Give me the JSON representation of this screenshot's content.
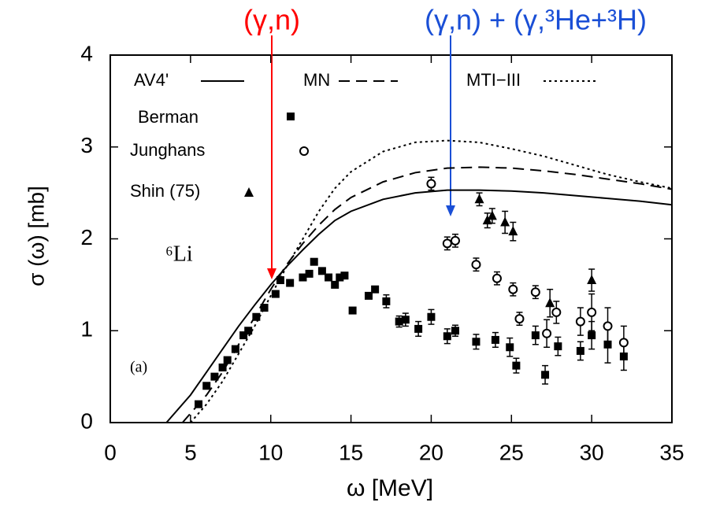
{
  "chart_data": {
    "type": "line",
    "annotations": [
      "(γ,n)",
      "(γ,n) + (γ,³He+³H)",
      "⁶Li",
      "(a)"
    ],
    "annotation_colors": [
      "#ff0000",
      "#1a4fd6",
      "#000000",
      "#000000"
    ],
    "xlabel": "ω  [MeV]",
    "ylabel": "σ (ω) [mb]",
    "xlim": [
      0,
      35
    ],
    "ylim": [
      0,
      4
    ],
    "xticks": [
      0,
      5,
      10,
      15,
      20,
      25,
      30,
      35
    ],
    "yticks": [
      0,
      1,
      2,
      3,
      4
    ],
    "series": [
      {
        "name": "AV4'",
        "kind": "line",
        "dash": "solid",
        "color": "#000000",
        "x": [
          3.5,
          5,
          6,
          7,
          8,
          9,
          10,
          11,
          12,
          13,
          14,
          15,
          17,
          19,
          21,
          23,
          25,
          27,
          29,
          31,
          33,
          35
        ],
        "values": [
          0,
          0.3,
          0.55,
          0.8,
          1.05,
          1.28,
          1.5,
          1.7,
          1.88,
          2.05,
          2.2,
          2.3,
          2.43,
          2.5,
          2.53,
          2.53,
          2.52,
          2.5,
          2.47,
          2.44,
          2.41,
          2.37
        ]
      },
      {
        "name": "MN",
        "kind": "line",
        "dash": "dashed",
        "color": "#000000",
        "x": [
          4.5,
          6,
          7,
          8,
          9,
          10,
          11,
          12,
          13,
          14,
          15,
          17,
          19,
          21,
          23,
          25,
          27,
          29,
          31,
          33,
          35
        ],
        "values": [
          0,
          0.3,
          0.55,
          0.85,
          1.15,
          1.45,
          1.72,
          1.95,
          2.15,
          2.32,
          2.45,
          2.62,
          2.72,
          2.77,
          2.78,
          2.77,
          2.74,
          2.7,
          2.65,
          2.6,
          2.54
        ]
      },
      {
        "name": "MTI−III",
        "kind": "line",
        "dash": "dotted",
        "color": "#000000",
        "x": [
          5,
          6,
          7,
          8,
          9,
          10,
          11,
          12,
          13,
          14,
          15,
          17,
          19,
          21,
          23,
          25,
          27,
          29,
          31,
          33,
          35
        ],
        "values": [
          0,
          0.2,
          0.45,
          0.75,
          1.05,
          1.38,
          1.7,
          2.0,
          2.3,
          2.55,
          2.73,
          2.95,
          3.05,
          3.07,
          3.05,
          2.98,
          2.9,
          2.8,
          2.7,
          2.62,
          2.55
        ]
      },
      {
        "name": "Berman",
        "kind": "scatter",
        "marker": "square",
        "color": "#000000",
        "x": [
          5.5,
          6,
          6.5,
          7,
          7.3,
          7.8,
          8.3,
          8.6,
          9.1,
          9.6,
          10.3,
          10.6,
          11.2,
          12,
          12.4,
          12.7,
          13.2,
          13.6,
          14,
          14.3,
          14.6,
          15.1,
          16.1,
          16.5,
          17.2,
          18,
          18.4,
          19.2,
          20,
          21,
          21.5,
          22.8,
          24,
          24.9,
          25.3,
          26.5,
          27.1,
          27.9,
          29.3,
          30,
          31,
          32
        ],
        "values": [
          0.2,
          0.4,
          0.5,
          0.6,
          0.68,
          0.8,
          0.95,
          1.0,
          1.15,
          1.25,
          1.4,
          1.55,
          1.52,
          1.58,
          1.62,
          1.75,
          1.65,
          1.58,
          1.5,
          1.58,
          1.6,
          1.22,
          1.38,
          1.45,
          1.32,
          1.1,
          1.12,
          1.02,
          1.15,
          0.94,
          1.0,
          0.88,
          0.9,
          0.82,
          0.62,
          0.95,
          0.52,
          0.83,
          0.78,
          0.95,
          0.85,
          0.72
        ],
        "errors": [
          0,
          0,
          0,
          0,
          0,
          0,
          0,
          0,
          0,
          0,
          0,
          0,
          0,
          0,
          0,
          0,
          0,
          0,
          0,
          0,
          0,
          0,
          0,
          0,
          0.07,
          0.06,
          0.07,
          0.08,
          0.08,
          0.08,
          0.06,
          0.08,
          0.08,
          0.1,
          0.08,
          0.1,
          0.1,
          0.1,
          0.1,
          0.15,
          0.2,
          0.15
        ]
      },
      {
        "name": "Junghans",
        "kind": "scatter",
        "marker": "circle",
        "color": "#000000",
        "x": [
          20,
          21,
          21.5,
          22.8,
          24.1,
          25.1,
          25.5,
          26.5,
          27.2,
          27.8,
          29.3,
          30,
          31,
          32
        ],
        "values": [
          2.6,
          1.95,
          1.98,
          1.72,
          1.57,
          1.45,
          1.13,
          1.42,
          0.97,
          1.2,
          1.1,
          1.2,
          1.05,
          0.87
        ],
        "errors": [
          0.07,
          0.07,
          0.07,
          0.07,
          0.07,
          0.07,
          0.07,
          0.07,
          0.15,
          0.12,
          0.15,
          0.2,
          0.2,
          0.18
        ]
      },
      {
        "name": "Shin (75)",
        "kind": "scatter",
        "marker": "triangle",
        "color": "#000000",
        "x": [
          23,
          23.5,
          23.8,
          24.6,
          25.1,
          27.4,
          30
        ],
        "values": [
          2.43,
          2.2,
          2.25,
          2.18,
          2.08,
          1.3,
          1.55
        ],
        "errors": [
          0.07,
          0.08,
          0.08,
          0.12,
          0.1,
          0.15,
          0.12
        ]
      }
    ]
  }
}
